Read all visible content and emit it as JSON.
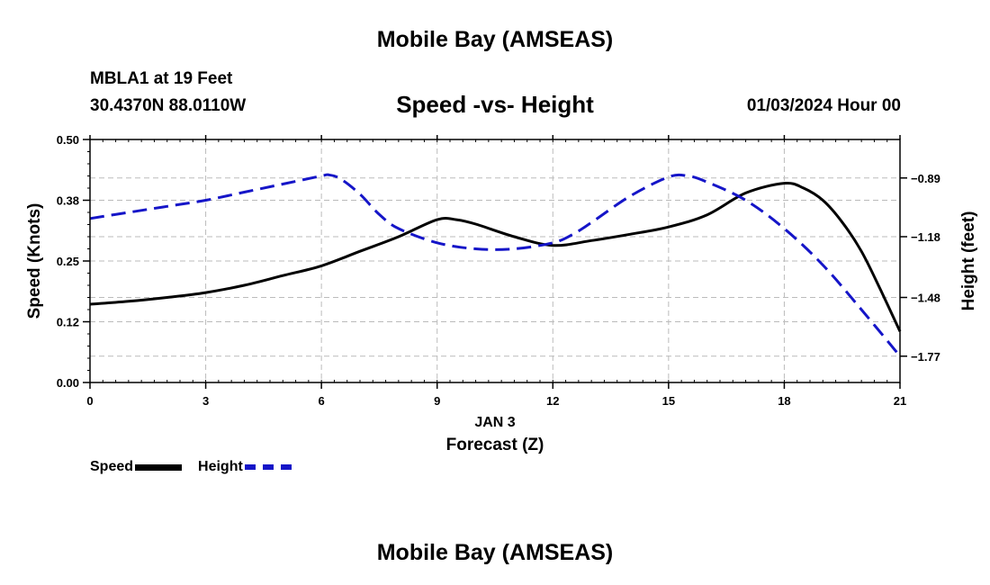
{
  "title": "Mobile Bay (AMSEAS)",
  "station": "MBLA1 at 19 Feet",
  "coords": "30.4370N  88.0110W",
  "subtitle": "Speed -vs- Height",
  "datetime": "01/03/2024 Hour 00",
  "bottom_title": "Mobile Bay (AMSEAS)",
  "legend": {
    "speed": "Speed",
    "height": "Height"
  },
  "colors": {
    "speed": "#000000",
    "height": "#1515c8",
    "grid": "#bbbbbb"
  },
  "chart_data": {
    "type": "line",
    "title": "Speed -vs- Height",
    "xlabel": "Forecast (Z)",
    "xdate": "JAN 3",
    "ylabel": "Speed (Knots)",
    "y2label": "Height (feet)",
    "xlim": [
      0,
      21
    ],
    "ylim": [
      0,
      0.5
    ],
    "y2lim": [
      -1.9,
      -0.7
    ],
    "xticks": [
      0,
      3,
      6,
      9,
      12,
      15,
      18,
      21
    ],
    "yticks": [
      0.0,
      0.125,
      0.25,
      0.375,
      0.5
    ],
    "ytick_labels": [
      "0.00",
      "0.12",
      "0.25",
      "0.38",
      "0.50"
    ],
    "y2ticks": [
      -0.89,
      -1.18,
      -1.48,
      -1.77
    ],
    "y2tick_labels": [
      "-0.89",
      "-1.18",
      "-1.48",
      "-1.77"
    ],
    "grid": true,
    "legend_position": "bottom-left",
    "series": [
      {
        "name": "Speed",
        "axis": "left",
        "x": [
          0,
          1,
          2,
          3,
          4,
          5,
          6,
          7,
          8,
          9,
          9.5,
          10,
          11,
          12,
          13,
          14,
          15,
          16,
          17,
          18,
          18.5,
          19,
          19.5,
          20,
          20.5,
          21
        ],
        "values": [
          0.161,
          0.167,
          0.175,
          0.185,
          0.2,
          0.22,
          0.24,
          0.27,
          0.3,
          0.335,
          0.335,
          0.326,
          0.3,
          0.282,
          0.292,
          0.305,
          0.32,
          0.345,
          0.39,
          0.41,
          0.4,
          0.375,
          0.33,
          0.27,
          0.19,
          0.105
        ]
      },
      {
        "name": "Height",
        "axis": "right",
        "x": [
          0,
          1,
          2,
          3,
          4,
          5,
          6,
          6.2,
          6.5,
          7,
          7.5,
          8,
          9,
          10,
          11,
          12,
          12.5,
          13,
          14,
          15,
          15.5,
          16,
          17,
          18,
          19,
          20,
          21
        ],
        "values": [
          -1.09,
          -1.06,
          -1.03,
          -1.0,
          -0.96,
          -0.92,
          -0.88,
          -0.875,
          -0.895,
          -0.97,
          -1.07,
          -1.14,
          -1.21,
          -1.24,
          -1.24,
          -1.21,
          -1.17,
          -1.11,
          -0.98,
          -0.885,
          -0.88,
          -0.91,
          -1.0,
          -1.14,
          -1.32,
          -1.54,
          -1.77
        ]
      }
    ]
  }
}
